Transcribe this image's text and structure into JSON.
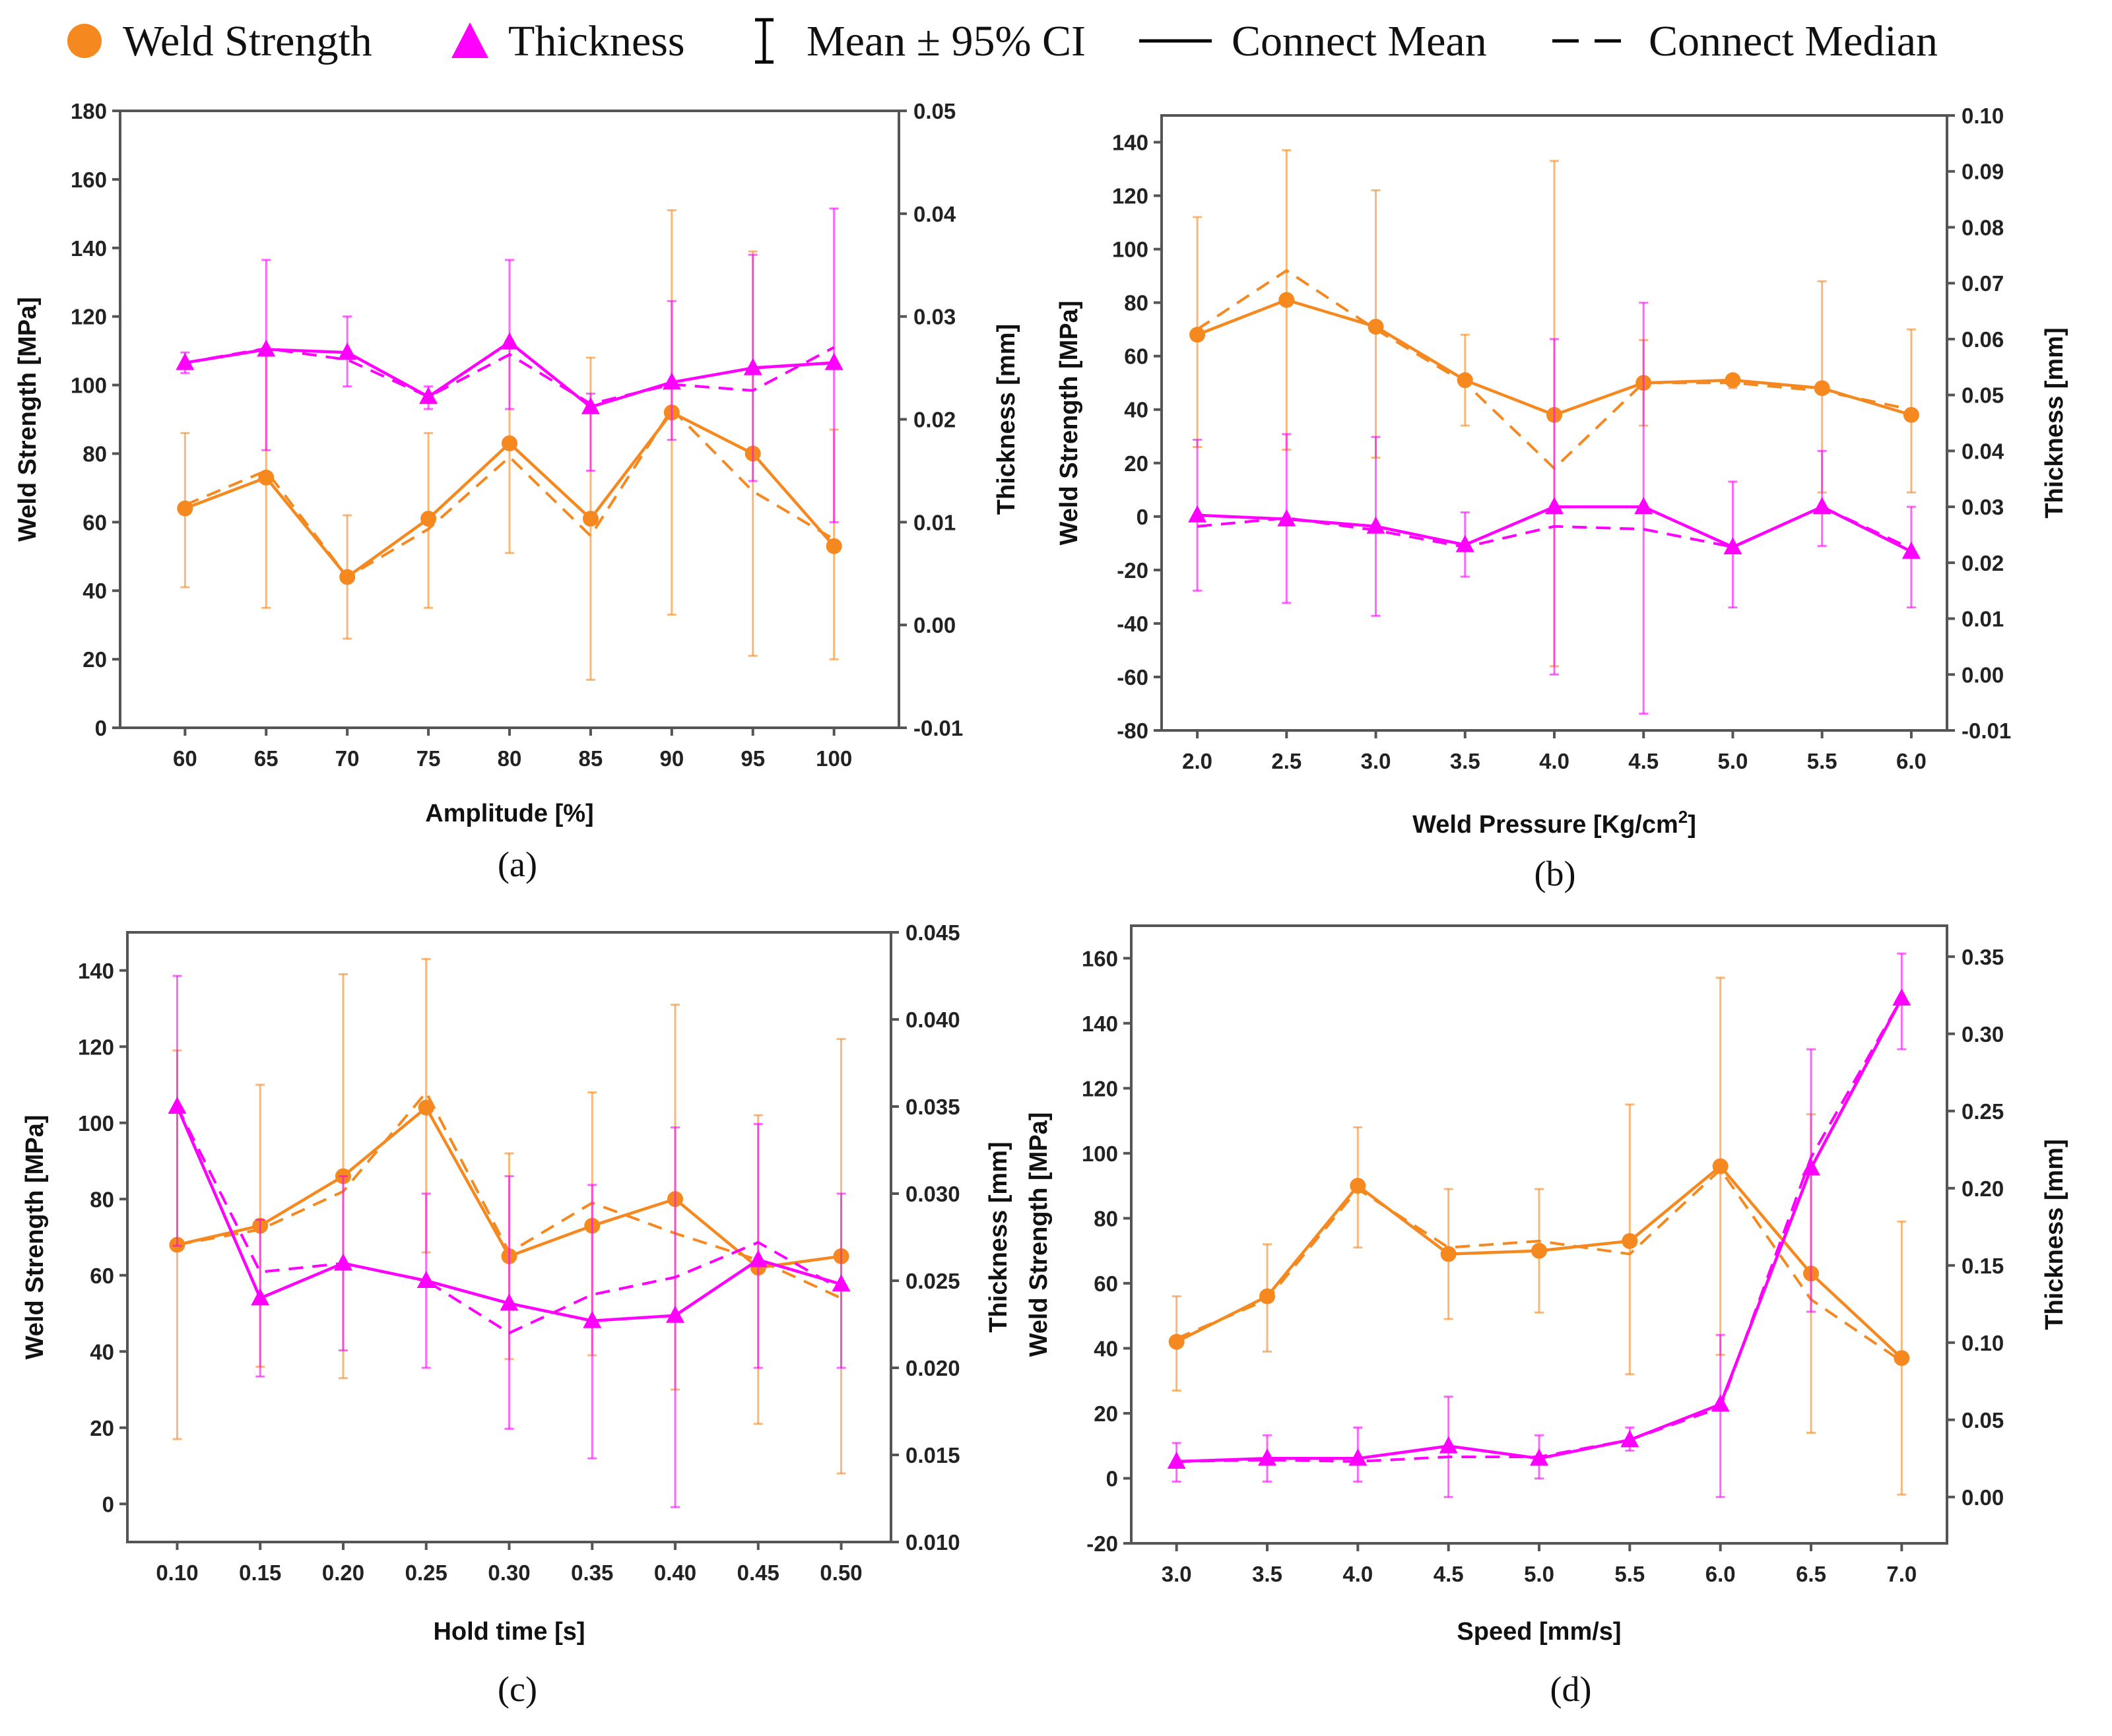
{
  "legend": {
    "items": [
      {
        "label": "Weld Strength",
        "symbol": "circle",
        "color": "#F5881F"
      },
      {
        "label": "Thickness",
        "symbol": "triangle",
        "color": "#FF00FF"
      },
      {
        "label": "Mean ± 95% CI",
        "symbol": "errorbar",
        "color": "#000000"
      },
      {
        "label": "Connect Mean",
        "symbol": "solid-line",
        "color": "#000000"
      },
      {
        "label": "Connect Median",
        "symbol": "dashed-line",
        "color": "#000000"
      }
    ]
  },
  "colors": {
    "strength": "#F5881F",
    "thickness": "#FF00FF",
    "axis": "#333333"
  },
  "chart_data": [
    {
      "id": "a",
      "caption": "(a)",
      "type": "line",
      "xlabel": "Amplitude [%]",
      "ylabel": "Weld Strength [MPa]",
      "y2label": "Thickness [mm]",
      "x_ticks": [
        "60",
        "65",
        "70",
        "75",
        "80",
        "85",
        "90",
        "95",
        "100"
      ],
      "x": [
        60,
        65,
        70,
        75,
        80,
        85,
        90,
        95,
        100
      ],
      "xlim": [
        56,
        104
      ],
      "ylim": [
        0,
        180
      ],
      "y_ticks": [
        "0",
        "20",
        "40",
        "60",
        "80",
        "100",
        "120",
        "140",
        "160",
        "180"
      ],
      "y2lim": [
        -0.01,
        0.05
      ],
      "y2_ticks": [
        "-0.01",
        "0.00",
        "0.01",
        "0.02",
        "0.03",
        "0.04",
        "0.05"
      ],
      "series": [
        {
          "name": "Weld Strength",
          "axis": "left",
          "mean": [
            64,
            73,
            44,
            61,
            83,
            61,
            92,
            80,
            53
          ],
          "median": [
            65,
            75,
            44,
            58,
            79,
            56,
            93,
            69,
            55
          ],
          "ci_low": [
            41,
            35,
            26,
            35,
            51,
            14,
            33,
            21,
            20
          ],
          "ci_high": [
            86,
            111,
            62,
            86,
            113,
            108,
            151,
            139,
            87
          ]
        },
        {
          "name": "Thickness",
          "axis": "right",
          "mean": [
            0.0255,
            0.0268,
            0.0265,
            0.0222,
            0.0275,
            0.0212,
            0.0236,
            0.025,
            0.0255
          ],
          "median": [
            0.0255,
            0.0269,
            0.0258,
            0.0222,
            0.0263,
            0.0215,
            0.0234,
            0.0228,
            0.027
          ],
          "ci_low": [
            0.0245,
            0.017,
            0.0232,
            0.021,
            0.021,
            0.015,
            0.018,
            0.014,
            0.01
          ],
          "ci_high": [
            0.0265,
            0.0355,
            0.03,
            0.0232,
            0.0355,
            0.0225,
            0.0315,
            0.036,
            0.0405
          ]
        }
      ]
    },
    {
      "id": "b",
      "caption": "(b)",
      "type": "line",
      "xlabel": "Weld Pressure [Kg/cm",
      "xlabel_sup": "2",
      "xlabel_end": "]",
      "ylabel": "Weld Strength [MPa]",
      "y2label": "Thickness [mm]",
      "x_ticks": [
        "2.0",
        "2.5",
        "3.0",
        "3.5",
        "4.0",
        "4.5",
        "5.0",
        "5.5",
        "6.0"
      ],
      "x": [
        2.0,
        2.5,
        3.0,
        3.5,
        4.0,
        4.5,
        5.0,
        5.5,
        6.0
      ],
      "xlim": [
        1.8,
        6.2
      ],
      "ylim": [
        -80,
        150
      ],
      "y_ticks": [
        "-80",
        "-60",
        "-40",
        "-20",
        "0",
        "20",
        "40",
        "60",
        "80",
        "100",
        "120",
        "140"
      ],
      "y2lim": [
        -0.01,
        0.1
      ],
      "y2_ticks": [
        "-0.01",
        "0.00",
        "0.01",
        "0.02",
        "0.03",
        "0.04",
        "0.05",
        "0.06",
        "0.07",
        "0.08",
        "0.09",
        "0.10"
      ],
      "series": [
        {
          "name": "Weld Strength",
          "axis": "left",
          "mean": [
            68,
            81,
            71,
            51,
            38,
            50,
            51,
            48,
            38
          ],
          "median": [
            70,
            92,
            70,
            50,
            18,
            50,
            50,
            47,
            40
          ],
          "ci_low": [
            26,
            25,
            22,
            34,
            -56,
            34,
            48,
            9,
            9
          ],
          "ci_high": [
            112,
            137,
            122,
            68,
            133,
            66,
            53,
            88,
            70
          ]
        },
        {
          "name": "Thickness",
          "axis": "right",
          "mean": [
            0.0285,
            0.0278,
            0.0265,
            0.0232,
            0.03,
            0.03,
            0.0228,
            0.03,
            0.022
          ],
          "median": [
            0.0265,
            0.028,
            0.0258,
            0.0228,
            0.0265,
            0.026,
            0.0228,
            0.03,
            0.0225
          ],
          "ci_low": [
            0.015,
            0.0128,
            0.0105,
            0.0175,
            0.0,
            -0.007,
            0.012,
            0.023,
            0.012
          ],
          "ci_high": [
            0.042,
            0.043,
            0.0425,
            0.029,
            0.06,
            0.0665,
            0.0345,
            0.04,
            0.03
          ]
        }
      ]
    },
    {
      "id": "c",
      "caption": "(c)",
      "type": "line",
      "xlabel": "Hold time [s]",
      "ylabel": "Weld Strength [MPa]",
      "y2label": "Thickness [mm]",
      "x_ticks": [
        "0.10",
        "0.15",
        "0.20",
        "0.25",
        "0.30",
        "0.35",
        "0.40",
        "0.45",
        "0.50"
      ],
      "x": [
        0.1,
        0.15,
        0.2,
        0.25,
        0.3,
        0.35,
        0.4,
        0.45,
        0.5
      ],
      "xlim": [
        0.07,
        0.53
      ],
      "ylim": [
        -10,
        150
      ],
      "y_ticks": [
        "0",
        "20",
        "40",
        "60",
        "80",
        "100",
        "120",
        "140"
      ],
      "y2lim": [
        0.01,
        0.045
      ],
      "y2_ticks": [
        "0.010",
        "0.015",
        "0.020",
        "0.025",
        "0.030",
        "0.035",
        "0.040",
        "0.045"
      ],
      "series": [
        {
          "name": "Weld Strength",
          "axis": "left",
          "mean": [
            68,
            73,
            86,
            104,
            65,
            73,
            80,
            62,
            65
          ],
          "median": [
            68,
            72,
            82,
            108,
            66,
            79,
            71,
            64,
            54
          ],
          "ci_low": [
            17,
            36,
            33,
            66,
            38,
            39,
            30,
            21,
            8
          ],
          "ci_high": [
            119,
            110,
            139,
            143,
            92,
            108,
            131,
            102,
            122
          ]
        },
        {
          "name": "Thickness",
          "axis": "right",
          "mean": [
            0.035,
            0.024,
            0.026,
            0.025,
            0.0237,
            0.0227,
            0.023,
            0.0262,
            0.0248
          ],
          "median": [
            0.035,
            0.0255,
            0.026,
            0.025,
            0.022,
            0.0242,
            0.0252,
            0.0272,
            0.0245
          ],
          "ci_low": [
            0.027,
            0.0195,
            0.021,
            0.02,
            0.0165,
            0.0148,
            0.012,
            0.02,
            0.02
          ],
          "ci_high": [
            0.0425,
            0.0285,
            0.031,
            0.03,
            0.031,
            0.0305,
            0.0338,
            0.034,
            0.03
          ]
        }
      ]
    },
    {
      "id": "d",
      "caption": "(d)",
      "type": "line",
      "xlabel": "Speed [mm/s]",
      "ylabel": "Weld Strength [MPa]",
      "y2label": "Thickness [mm]",
      "x_ticks": [
        "3.0",
        "3.5",
        "4.0",
        "4.5",
        "5.0",
        "5.5",
        "6.0",
        "6.5",
        "7.0"
      ],
      "x": [
        3.0,
        3.5,
        4.0,
        4.5,
        5.0,
        5.5,
        6.0,
        6.5,
        7.0
      ],
      "xlim": [
        2.75,
        7.25
      ],
      "ylim": [
        -20,
        170
      ],
      "y_ticks": [
        "-20",
        "0",
        "20",
        "40",
        "60",
        "80",
        "100",
        "120",
        "140",
        "160"
      ],
      "y2lim": [
        -0.03,
        0.37
      ],
      "y2_ticks": [
        "0.00",
        "0.05",
        "0.10",
        "0.15",
        "0.20",
        "0.25",
        "0.30",
        "0.35"
      ],
      "series": [
        {
          "name": "Weld Strength",
          "axis": "left",
          "mean": [
            42,
            56,
            90,
            69,
            70,
            73,
            96,
            63,
            37
          ],
          "median": [
            43,
            55,
            89,
            71,
            73,
            69,
            95,
            55,
            36
          ],
          "ci_low": [
            27,
            39,
            71,
            49,
            51,
            32,
            38,
            14,
            -5
          ],
          "ci_high": [
            56,
            72,
            108,
            89,
            89,
            115,
            154,
            112,
            79
          ]
        },
        {
          "name": "Thickness",
          "axis": "right",
          "mean": [
            0.023,
            0.025,
            0.025,
            0.033,
            0.025,
            0.037,
            0.06,
            0.213,
            0.323
          ],
          "median": [
            0.023,
            0.024,
            0.023,
            0.026,
            0.026,
            0.037,
            0.058,
            0.22,
            0.323
          ],
          "ci_low": [
            0.01,
            0.01,
            0.01,
            0.0,
            0.012,
            0.03,
            0.0,
            0.12,
            0.29
          ],
          "ci_high": [
            0.035,
            0.04,
            0.045,
            0.065,
            0.04,
            0.045,
            0.105,
            0.29,
            0.352
          ]
        }
      ]
    }
  ]
}
